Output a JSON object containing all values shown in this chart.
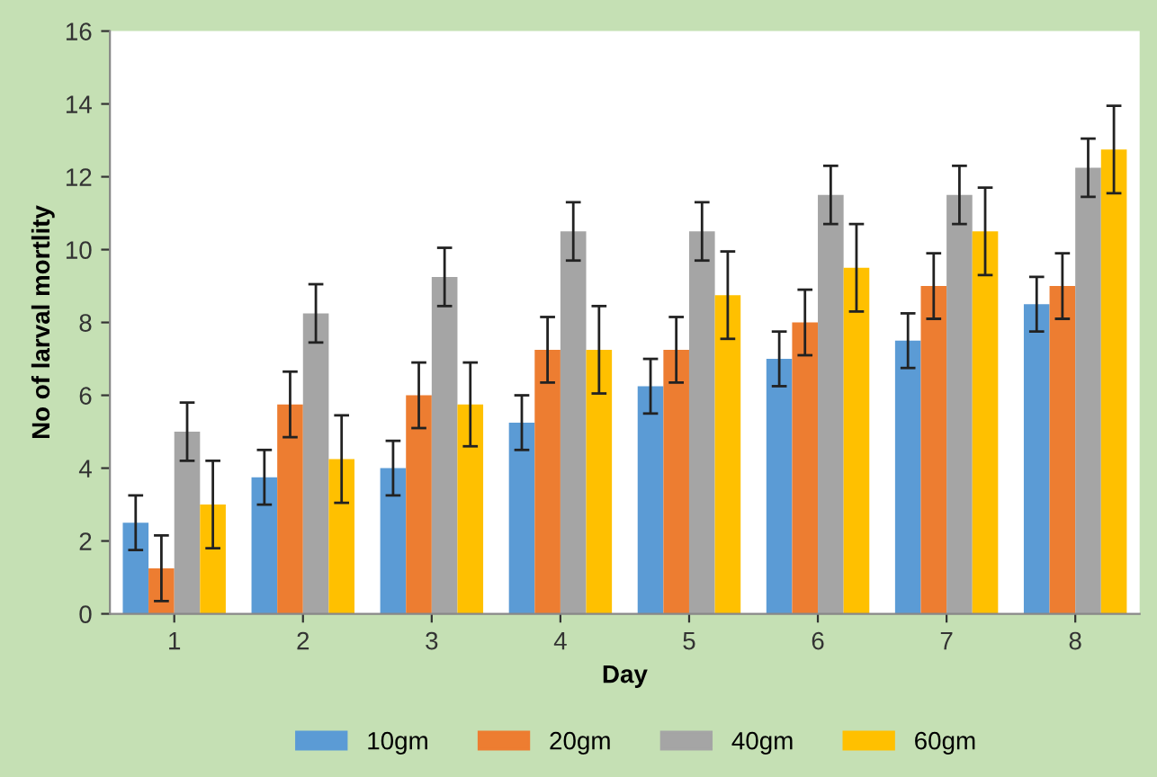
{
  "chart_data": {
    "type": "bar",
    "xlabel": "Day",
    "ylabel": "No of larval mortlity",
    "categories": [
      "1",
      "2",
      "3",
      "4",
      "5",
      "6",
      "7",
      "8"
    ],
    "series": [
      {
        "name": "10gm",
        "color": "#5b9bd5",
        "values": [
          2.5,
          3.75,
          4,
          5.25,
          6.25,
          7,
          7.5,
          8.5
        ],
        "errors": [
          0.75,
          0.75,
          0.75,
          0.75,
          0.75,
          0.75,
          0.75,
          0.75
        ]
      },
      {
        "name": "20gm",
        "color": "#ed7d31",
        "values": [
          1.25,
          5.75,
          6,
          7.25,
          7.25,
          8,
          9,
          9
        ],
        "errors": [
          0.9,
          0.9,
          0.9,
          0.9,
          0.9,
          0.9,
          0.9,
          0.9
        ]
      },
      {
        "name": "40gm",
        "color": "#a5a5a5",
        "values": [
          5,
          8.25,
          9.25,
          10.5,
          10.5,
          11.5,
          11.5,
          12.25
        ],
        "errors": [
          0.8,
          0.8,
          0.8,
          0.8,
          0.8,
          0.8,
          0.8,
          0.8
        ]
      },
      {
        "name": "60gm",
        "color": "#ffc000",
        "values": [
          3,
          4.25,
          5.75,
          7.25,
          8.75,
          9.5,
          10.5,
          12.75
        ],
        "errors": [
          1.2,
          1.2,
          1.15,
          1.2,
          1.2,
          1.2,
          1.2,
          1.2
        ]
      }
    ],
    "ylim": [
      0,
      16
    ],
    "yticks": [
      0,
      2,
      4,
      6,
      8,
      10,
      12,
      14,
      16
    ],
    "grid": false,
    "legend": "bottom"
  }
}
